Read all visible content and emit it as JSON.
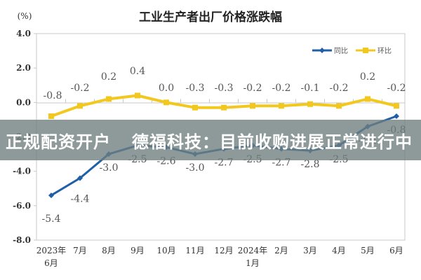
{
  "chart_data": {
    "type": "line",
    "title": "工业生产者出厂价格涨跌幅",
    "ylabel": "(%)",
    "xlabel": "",
    "ylim": [
      -8.0,
      4.0
    ],
    "yticks": [
      "4.0",
      "2.0",
      "0.0",
      "-2.0",
      "-4.0",
      "-6.0",
      "-8.0"
    ],
    "ytick_values": [
      4.0,
      2.0,
      0.0,
      -2.0,
      -4.0,
      -6.0,
      -8.0
    ],
    "categories": [
      "2023年\n6月",
      "7月",
      "8月",
      "9月",
      "10月",
      "11月",
      "12月",
      "2024年\n1月",
      "2月",
      "3月",
      "4月",
      "5月",
      "6月"
    ],
    "category_lines": [
      [
        "2023年",
        "6月"
      ],
      [
        "7月"
      ],
      [
        "8月"
      ],
      [
        "9月"
      ],
      [
        "10月"
      ],
      [
        "11月"
      ],
      [
        "12月"
      ],
      [
        "2024年",
        "1月"
      ],
      [
        "2月"
      ],
      [
        "3月"
      ],
      [
        "4月"
      ],
      [
        "5月"
      ],
      [
        "6月"
      ]
    ],
    "series": [
      {
        "name": "同比",
        "color": "#1f5fa8",
        "values": [
          -5.4,
          -4.4,
          -3.0,
          -2.5,
          -2.6,
          -3.0,
          -2.7,
          -2.5,
          -2.7,
          -2.8,
          -2.5,
          -1.4,
          -0.8
        ],
        "labels": [
          "-5.4",
          "-4.4",
          "-3.0",
          "-2.5",
          "-2.6",
          "-3.0",
          "-2.7",
          "-2.5",
          "-2.7",
          "-2.8",
          "-2.5",
          "-1.4",
          "-0.8"
        ]
      },
      {
        "name": "环比",
        "color": "#f2c81e",
        "values": [
          -0.8,
          -0.2,
          0.2,
          0.4,
          0.0,
          -0.3,
          -0.3,
          -0.2,
          -0.2,
          -0.1,
          -0.2,
          0.2,
          -0.2
        ],
        "labels": [
          "-0.8",
          "-0.2",
          "0.2",
          "0.4",
          "0.0",
          "-0.3",
          "-0.3",
          "-0.2",
          "-0.2",
          "-0.1",
          "-0.2",
          "0.2",
          "-0.2"
        ]
      }
    ],
    "legend_position": "top-right",
    "grid": false
  },
  "banner": {
    "left_text": "正规配资开户",
    "right_text": "德福科技：目前收购进展正常进行中"
  }
}
